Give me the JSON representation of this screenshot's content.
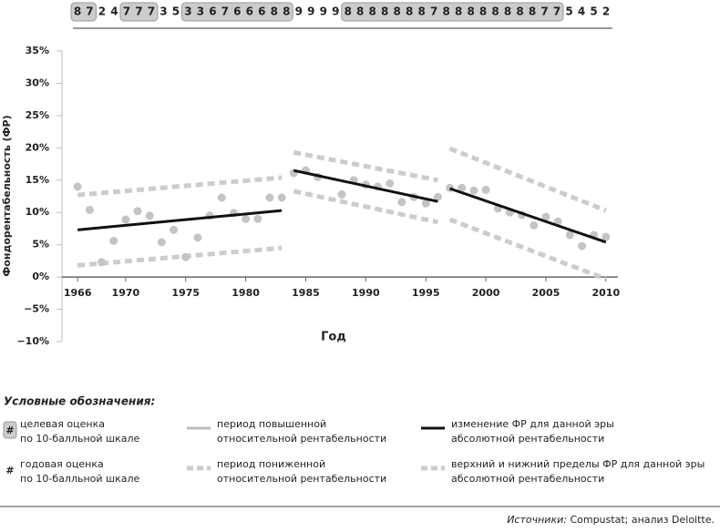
{
  "chart_data": {
    "type": "scatter",
    "y_label": "Фондорентабельность (ФР)",
    "x_label": "Год",
    "xlim": [
      1965,
      2011
    ],
    "ylim": [
      -10,
      35
    ],
    "xticks": [
      1966,
      1970,
      1975,
      1980,
      1985,
      1990,
      1995,
      2000,
      2005,
      2010
    ],
    "yticks": [
      {
        "value": -10,
        "label": "−10%"
      },
      {
        "value": -5,
        "label": "−5%"
      },
      {
        "value": 0,
        "label": "0%"
      },
      {
        "value": 5,
        "label": "5%"
      },
      {
        "value": 10,
        "label": "10%"
      },
      {
        "value": 15,
        "label": "15%"
      },
      {
        "value": 20,
        "label": "20%"
      },
      {
        "value": 25,
        "label": "25%"
      },
      {
        "value": 30,
        "label": "30%"
      },
      {
        "value": 35,
        "label": "35%"
      }
    ],
    "score_strip": [
      {
        "boxed": true,
        "digits": [
          8,
          7
        ]
      },
      {
        "boxed": false,
        "digits": [
          2,
          4
        ]
      },
      {
        "boxed": true,
        "digits": [
          7,
          7,
          7
        ]
      },
      {
        "boxed": false,
        "digits": [
          3,
          5
        ]
      },
      {
        "boxed": true,
        "digits": [
          3,
          3,
          6,
          7,
          6,
          6,
          6,
          8,
          8
        ]
      },
      {
        "boxed": false,
        "digits": [
          9,
          9,
          9,
          9
        ]
      },
      {
        "boxed": true,
        "digits": [
          8,
          8,
          8,
          8,
          8,
          8,
          8,
          7,
          8,
          8,
          8,
          8,
          8,
          8,
          8,
          8,
          7,
          7
        ]
      },
      {
        "boxed": false,
        "digits": [
          5,
          4,
          5,
          2
        ]
      }
    ],
    "points": {
      "color": "#c4c4c4",
      "x": [
        1966,
        1967,
        1968,
        1969,
        1970,
        1971,
        1972,
        1973,
        1974,
        1975,
        1976,
        1977,
        1978,
        1979,
        1980,
        1981,
        1982,
        1983,
        1984,
        1985,
        1986,
        1988,
        1989,
        1990,
        1991,
        1992,
        1993,
        1994,
        1995,
        1996,
        1997,
        1998,
        1999,
        2000,
        2001,
        2002,
        2003,
        2004,
        2005,
        2006,
        2007,
        2008,
        2009,
        2010
      ],
      "y": [
        14.0,
        10.4,
        2.3,
        5.6,
        8.9,
        10.2,
        9.5,
        5.4,
        7.3,
        3.1,
        6.1,
        9.5,
        12.3,
        9.9,
        9.0,
        9.0,
        12.3,
        12.3,
        16.1,
        16.5,
        15.5,
        12.8,
        15.0,
        14.3,
        14.0,
        14.5,
        11.6,
        12.4,
        11.4,
        12.4,
        13.8,
        13.8,
        13.4,
        13.5,
        10.6,
        10.0,
        9.6,
        8.0,
        9.3,
        8.6,
        6.5,
        4.8,
        6.5,
        6.2
      ]
    },
    "trend_color": "#111111",
    "trends": [
      {
        "x": [
          1966,
          1983
        ],
        "y": [
          7.3,
          10.3
        ]
      },
      {
        "x": [
          1984,
          1996
        ],
        "y": [
          16.5,
          11.7
        ]
      },
      {
        "x": [
          1997,
          2010
        ],
        "y": [
          13.7,
          5.4
        ]
      }
    ],
    "bound_color": "#cccccc",
    "bounds": [
      {
        "x": [
          1966,
          1983
        ],
        "upper": [
          12.7,
          15.4
        ],
        "lower": [
          1.8,
          4.5
        ]
      },
      {
        "x": [
          1984,
          1996
        ],
        "upper": [
          19.3,
          15.0
        ],
        "lower": [
          13.3,
          8.5
        ]
      },
      {
        "x": [
          1997,
          2010
        ],
        "upper": [
          19.9,
          10.3
        ],
        "lower": [
          8.9,
          -0.3
        ]
      }
    ]
  },
  "legend": {
    "title": "Условные обозначения:",
    "items": [
      {
        "symbol": "#",
        "boxed": true,
        "lines": [
          "целевая оценка",
          "по 10-балльной шкале"
        ]
      },
      {
        "style": "solid",
        "color": "#bbbbbb",
        "lines": [
          "период повышенной",
          "относительной рентабельности"
        ]
      },
      {
        "style": "solid",
        "color": "#111111",
        "lines": [
          "изменение ФР для данной эры",
          "абсолютной рентабельности"
        ]
      },
      {
        "symbol": "#",
        "boxed": false,
        "lines": [
          "годовая оценка",
          "по 10-балльной шкале"
        ]
      },
      {
        "style": "dashed",
        "color": "#cccccc",
        "lines": [
          "период пониженной",
          "относительной рентабельности"
        ]
      },
      {
        "style": "dashed",
        "color": "#cccccc",
        "lines": [
          "верхний и нижний пределы ФР для данной эры",
          "абсолютной рентабельности"
        ]
      }
    ]
  },
  "source": {
    "label": "Источники:",
    "text": " Compustat; анализ Deloitte."
  }
}
